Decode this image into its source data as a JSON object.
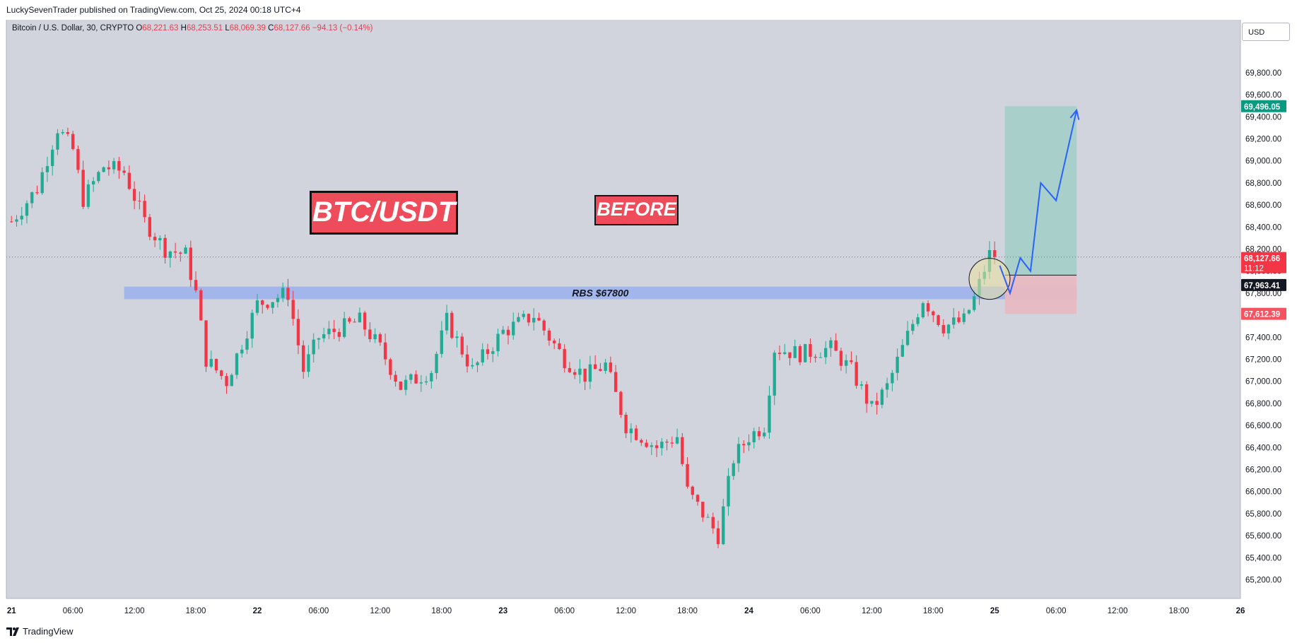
{
  "header": {
    "published_by": "LuckySevenTrader published on TradingView.com, Oct 25, 2024 00:18 UTC+4"
  },
  "symbol": {
    "name": "Bitcoin / U.S. Dollar, 30, CRYPTO",
    "open_label": "O",
    "open": "68,221.63",
    "high_label": "H",
    "high": "68,253.51",
    "low_label": "L",
    "low": "68,069.39",
    "close_label": "C",
    "close": "68,127.66",
    "change": "−94.13 (−0.14%)"
  },
  "currency": "USD",
  "labels": {
    "main": "BTC/USDT",
    "before": "BEFORE",
    "zone": "RBS $67800"
  },
  "price_tags": {
    "target": "69,496.05",
    "current": "68,127.66",
    "countdown": "11:12",
    "entry": "67,963.41",
    "stop": "67,612.39"
  },
  "footer": {
    "brand": "TradingView"
  },
  "colors": {
    "background": "#d1d4dc",
    "bull": "#22ab94",
    "bear": "#f23645",
    "zone": "#9fb4ec",
    "target_zone": "#a7cfc9",
    "stop_zone": "#e8b9c2",
    "arrow": "#2962ff",
    "target_tag": "#089981",
    "current_tag": "#f23645",
    "entry_tag": "#131722",
    "stop_tag": "#f7525f"
  },
  "chart_data": {
    "type": "candlestick",
    "y_axis": {
      "ticks": [
        "69,800.00",
        "69,600.00",
        "69,400.00",
        "69,200.00",
        "69,000.00",
        "68,800.00",
        "68,600.00",
        "68,400.00",
        "68,200.00",
        "68,000.00",
        "67,800.00",
        "67,600.00",
        "67,400.00",
        "67,200.00",
        "67,000.00",
        "66,800.00",
        "66,600.00",
        "66,400.00",
        "66,200.00",
        "66,000.00",
        "65,800.00",
        "65,600.00",
        "65,400.00",
        "65,200.00"
      ],
      "tick_values": [
        69800,
        69600,
        69400,
        69200,
        69000,
        68800,
        68600,
        68400,
        68200,
        68000,
        67800,
        67600,
        67400,
        67200,
        67000,
        66800,
        66600,
        66400,
        66200,
        66000,
        65800,
        65600,
        65400,
        65200
      ],
      "range": [
        65030,
        70280
      ]
    },
    "x_axis": {
      "ticks": [
        "21",
        "06:00",
        "12:00",
        "18:00",
        "22",
        "06:00",
        "12:00",
        "18:00",
        "23",
        "06:00",
        "12:00",
        "18:00",
        "24",
        "06:00",
        "12:00",
        "18:00",
        "25",
        "06:00",
        "12:00",
        "18:00",
        "26"
      ],
      "bold": [
        true,
        false,
        false,
        false,
        true,
        false,
        false,
        false,
        true,
        false,
        false,
        false,
        true,
        false,
        false,
        false,
        true,
        false,
        false,
        false,
        true
      ],
      "range": [
        "Oct 20 23:30",
        "Oct 26 00:00"
      ]
    },
    "waypoints": [
      {
        "time": "Oct 21 00:00",
        "price": 68450
      },
      {
        "time": "Oct 21 02:30",
        "price": 68750
      },
      {
        "time": "Oct 21 04:30",
        "price": 69300
      },
      {
        "time": "Oct 21 06:00",
        "price": 69100
      },
      {
        "time": "Oct 21 07:00",
        "price": 68650
      },
      {
        "time": "Oct 21 09:00",
        "price": 68950
      },
      {
        "time": "Oct 21 11:00",
        "price": 68900
      },
      {
        "time": "Oct 21 13:00",
        "price": 68450
      },
      {
        "time": "Oct 21 15:00",
        "price": 68200
      },
      {
        "time": "Oct 21 17:00",
        "price": 68150
      },
      {
        "time": "Oct 21 18:00",
        "price": 67800
      },
      {
        "time": "Oct 21 19:00",
        "price": 67200
      },
      {
        "time": "Oct 21 21:00",
        "price": 67000
      },
      {
        "time": "Oct 22 00:00",
        "price": 67700
      },
      {
        "time": "Oct 22 03:00",
        "price": 67800
      },
      {
        "time": "Oct 22 04:30",
        "price": 67100
      },
      {
        "time": "Oct 22 06:00",
        "price": 67400
      },
      {
        "time": "Oct 22 10:00",
        "price": 67550
      },
      {
        "time": "Oct 22 12:00",
        "price": 67300
      },
      {
        "time": "Oct 22 14:00",
        "price": 66950
      },
      {
        "time": "Oct 22 17:00",
        "price": 67100
      },
      {
        "time": "Oct 22 18:30",
        "price": 67550
      },
      {
        "time": "Oct 22 21:00",
        "price": 67100
      },
      {
        "time": "Oct 23 00:00",
        "price": 67450
      },
      {
        "time": "Oct 23 03:00",
        "price": 67600
      },
      {
        "time": "Oct 23 06:00",
        "price": 67200
      },
      {
        "time": "Oct 23 08:00",
        "price": 67050
      },
      {
        "time": "Oct 23 10:00",
        "price": 67150
      },
      {
        "time": "Oct 23 12:00",
        "price": 66600
      },
      {
        "time": "Oct 23 15:00",
        "price": 66400
      },
      {
        "time": "Oct 23 17:00",
        "price": 66500
      },
      {
        "time": "Oct 23 18:00",
        "price": 66000
      },
      {
        "time": "Oct 23 19:30",
        "price": 65800
      },
      {
        "time": "Oct 23 21:00",
        "price": 65600
      },
      {
        "time": "Oct 23 22:30",
        "price": 66300
      },
      {
        "time": "Oct 24 00:00",
        "price": 66500
      },
      {
        "time": "Oct 24 01:30",
        "price": 66600
      },
      {
        "time": "Oct 24 02:30",
        "price": 67300
      },
      {
        "time": "Oct 24 05:00",
        "price": 67250
      },
      {
        "time": "Oct 24 08:00",
        "price": 67300
      },
      {
        "time": "Oct 24 10:00",
        "price": 67100
      },
      {
        "time": "Oct 24 12:00",
        "price": 66750
      },
      {
        "time": "Oct 24 13:30",
        "price": 66950
      },
      {
        "time": "Oct 24 15:00",
        "price": 67300
      },
      {
        "time": "Oct 24 17:00",
        "price": 67750
      },
      {
        "time": "Oct 24 19:00",
        "price": 67500
      },
      {
        "time": "Oct 24 21:00",
        "price": 67550
      },
      {
        "time": "Oct 24 22:00",
        "price": 67750
      },
      {
        "time": "Oct 24 23:30",
        "price": 68150
      },
      {
        "time": "Oct 25 00:00",
        "price": 68130
      }
    ],
    "zones": [
      {
        "label": "RBS $67800",
        "from_time": "Oct 21 11:00",
        "to_time": "Oct 25 08:00",
        "top": 67860,
        "bottom": 67745
      },
      {
        "role": "target",
        "from_time": "Oct 25 01:00",
        "to_time": "Oct 25 08:00",
        "top": 69496.05,
        "bottom": 67963.41
      },
      {
        "role": "stop",
        "from_time": "Oct 25 01:00",
        "to_time": "Oct 25 08:00",
        "top": 67963.41,
        "bottom": 67612.39
      }
    ],
    "projection": [
      {
        "time": "Oct 25 00:30",
        "price": 68050
      },
      {
        "time": "Oct 25 01:30",
        "price": 67800
      },
      {
        "time": "Oct 25 02:30",
        "price": 68120
      },
      {
        "time": "Oct 25 03:30",
        "price": 68000
      },
      {
        "time": "Oct 25 04:30",
        "price": 68800
      },
      {
        "time": "Oct 25 06:00",
        "price": 68640
      },
      {
        "time": "Oct 25 08:00",
        "price": 69460
      }
    ],
    "current_price_line": 68127.66,
    "highlight_circle": {
      "time": "Oct 24 23:30",
      "price": 67930
    }
  }
}
